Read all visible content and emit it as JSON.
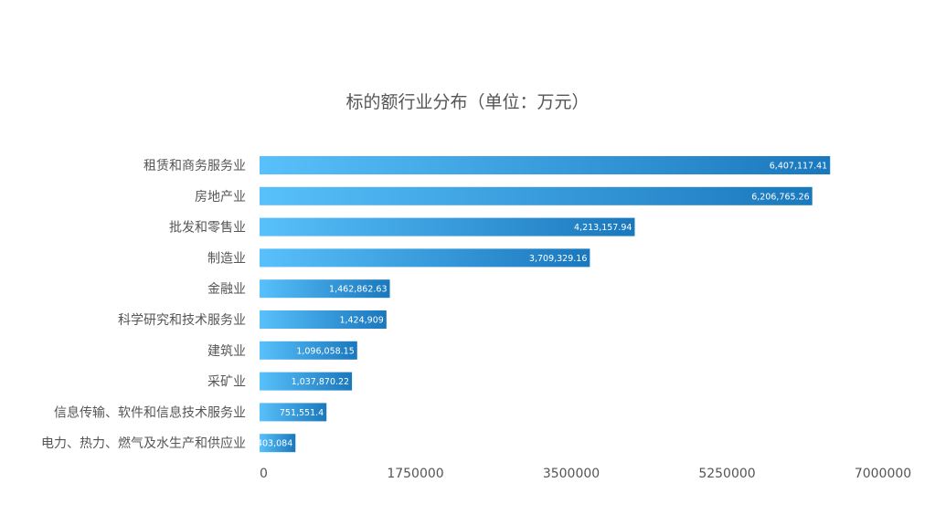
{
  "chart_data": {
    "type": "bar",
    "orientation": "horizontal",
    "title": "标的额行业分布（单位：万元）",
    "xlabel": "",
    "ylabel": "",
    "categories": [
      "租赁和商务服务业",
      "房地产业",
      "批发和零售业",
      "制造业",
      "金融业",
      "科学研究和技术服务业",
      "建筑业",
      "采矿业",
      "信息传输、软件和信息技术服务业",
      "电力、热力、燃气及水生产和供应业"
    ],
    "values": [
      6407117.41,
      6206765.26,
      4213157.94,
      3709329.16,
      1462862.63,
      1424909,
      1096058.15,
      1037870.22,
      751551.4,
      403084
    ],
    "value_labels": [
      "6,407,117.41",
      "6,206,765.26",
      "4,213,157.94",
      "3,709,329.16",
      "1,462,862.63",
      "1,424,909",
      "1,096,058.15",
      "1,037,870.22",
      "751,551.4",
      "403,084"
    ],
    "xlim": [
      0,
      7000000
    ],
    "x_ticks": [
      "0",
      "1750000",
      "3500000",
      "5250000",
      "7000000"
    ],
    "grid": false,
    "legend": "none",
    "colors": {
      "bar_gradient_start": "#58c0fb",
      "bar_gradient_end": "#1a78bd",
      "text": "#555555",
      "data_label": "#ffffff"
    }
  }
}
